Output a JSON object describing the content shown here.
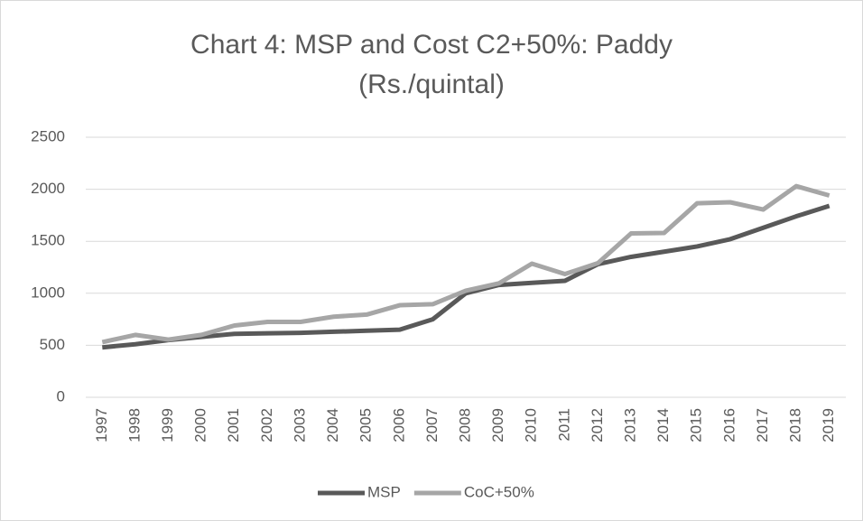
{
  "chart_data": {
    "type": "line",
    "title": "Chart 4: MSP and Cost C2+50%: Paddy (Rs./quintal)",
    "categories": [
      "1997",
      "1998",
      "1999",
      "2000",
      "2001",
      "2002",
      "2003",
      "2004",
      "2005",
      "2006",
      "2007",
      "2008",
      "2009",
      "2010",
      "2011",
      "2012",
      "2013",
      "2014",
      "2015",
      "2016",
      "2017",
      "2018",
      "2019"
    ],
    "series": [
      {
        "name": "MSP",
        "color": "#595959",
        "values": [
          480,
          510,
          550,
          580,
          610,
          615,
          620,
          630,
          640,
          650,
          750,
          1000,
          1080,
          1100,
          1120,
          1280,
          1350,
          1400,
          1450,
          1520,
          1630,
          1740,
          1840
        ]
      },
      {
        "name": "CoC+50%",
        "color": "#a6a6a6",
        "values": [
          530,
          600,
          555,
          600,
          690,
          725,
          725,
          775,
          795,
          885,
          895,
          1025,
          1095,
          1285,
          1185,
          1290,
          1575,
          1580,
          1865,
          1875,
          1805,
          2030,
          1940
        ]
      }
    ],
    "ylim": [
      0,
      2500
    ],
    "yticks": [
      0,
      500,
      1000,
      1500,
      2000,
      2500
    ],
    "grid": true,
    "legend": "bottom"
  }
}
